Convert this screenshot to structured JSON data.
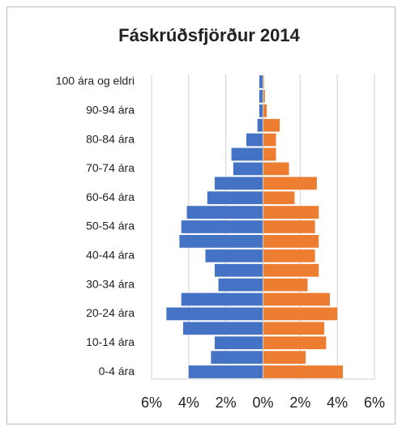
{
  "chart_data": {
    "type": "pyramid",
    "title": "Fáskrúðsfjörður 2014",
    "categories": [
      "0-4 ára",
      null,
      "10-14 ára",
      null,
      "20-24 ára",
      null,
      "30-34 ára",
      null,
      "40-44 ára",
      null,
      "50-54 ára",
      null,
      "60-64 ára",
      null,
      "70-74 ára",
      null,
      "80-84 ára",
      null,
      "90-94 ára",
      null,
      "100 ára og eldri"
    ],
    "series": [
      {
        "color": "#4472c4",
        "values": [
          -4.0,
          -2.8,
          -2.6,
          -4.3,
          -5.2,
          -4.4,
          -2.4,
          -2.6,
          -3.1,
          -4.5,
          -4.4,
          -4.1,
          -3.0,
          -2.6,
          -1.6,
          -1.7,
          -0.9,
          -0.3,
          -0.2,
          -0.2,
          -0.2
        ]
      },
      {
        "color": "#ed7d31",
        "values": [
          4.3,
          2.3,
          3.4,
          3.3,
          4.0,
          3.6,
          2.4,
          3.0,
          2.8,
          3.0,
          2.8,
          3.0,
          1.7,
          2.9,
          1.4,
          0.7,
          0.7,
          0.9,
          0.2,
          0.1,
          0.05
        ]
      }
    ],
    "xlim": [
      -6,
      6
    ],
    "xticks": [
      {
        "value": -6,
        "label": "6%"
      },
      {
        "value": -4,
        "label": "4%"
      },
      {
        "value": -2,
        "label": "2%"
      },
      {
        "value": 0,
        "label": "0%"
      },
      {
        "value": 2,
        "label": "2%"
      },
      {
        "value": 4,
        "label": "4%"
      },
      {
        "value": 6,
        "label": "6%"
      }
    ],
    "grid": true
  }
}
